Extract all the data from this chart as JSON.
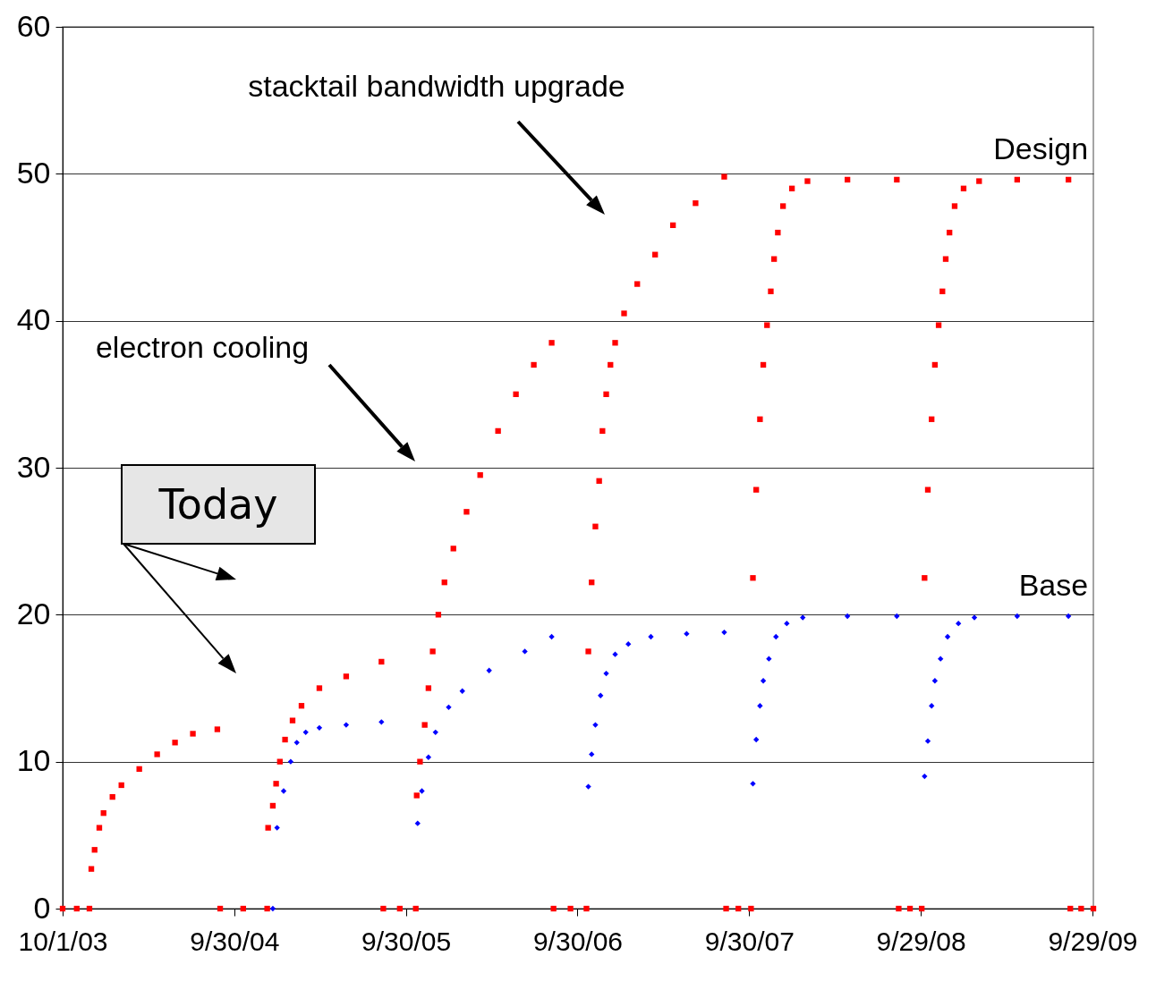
{
  "chart_data": {
    "type": "scatter",
    "xlim": [
      "2003-10-01",
      "2009-10-01"
    ],
    "xticks": [
      {
        "value": "2003-10-01",
        "label": "10/1/03"
      },
      {
        "value": "2004-09-30",
        "label": "9/30/04"
      },
      {
        "value": "2005-09-30",
        "label": "9/30/05"
      },
      {
        "value": "2006-09-30",
        "label": "9/30/06"
      },
      {
        "value": "2007-09-30",
        "label": "9/30/07"
      },
      {
        "value": "2008-09-29",
        "label": "9/29/08"
      },
      {
        "value": "2009-09-29",
        "label": "9/29/09"
      }
    ],
    "ylim": [
      0,
      60
    ],
    "yticks": [
      0,
      10,
      20,
      30,
      40,
      50,
      60
    ],
    "grid": "y",
    "annotations": [
      "stacktail bandwidth upgrade",
      "electron cooling",
      "Today"
    ],
    "series": [
      {
        "name": "Design",
        "color": "#ff0000",
        "marker": "square",
        "x": [
          "2003-10-01",
          "2003-10-31",
          "2003-11-27",
          "2003-12-01",
          "2003-12-08",
          "2003-12-18",
          "2003-12-27",
          "2004-01-15",
          "2004-02-03",
          "2004-03-12",
          "2004-04-19",
          "2004-05-27",
          "2004-07-04",
          "2004-08-25",
          "2004-08-31",
          "2004-10-19",
          "2004-12-09",
          "2004-12-11",
          "2004-12-21",
          "2004-12-28",
          "2005-01-05",
          "2005-01-16",
          "2005-02-01",
          "2005-02-20",
          "2005-03-30",
          "2005-05-26",
          "2005-08-09",
          "2005-08-13",
          "2005-09-17",
          "2005-10-21",
          "2005-10-23",
          "2005-10-30",
          "2005-11-09",
          "2005-11-17",
          "2005-11-26",
          "2005-12-08",
          "2005-12-21",
          "2006-01-09",
          "2006-02-06",
          "2006-03-07",
          "2006-04-14",
          "2006-05-22",
          "2006-06-29",
          "2006-08-06",
          "2006-08-10",
          "2006-09-15",
          "2006-10-19",
          "2006-10-23",
          "2006-10-30",
          "2006-11-07",
          "2006-11-15",
          "2006-11-22",
          "2006-11-30",
          "2006-12-09",
          "2006-12-19",
          "2007-01-07",
          "2007-02-04",
          "2007-03-14",
          "2007-04-21",
          "2007-06-08",
          "2007-08-08",
          "2007-08-12",
          "2007-09-07",
          "2007-10-04",
          "2007-10-08",
          "2007-10-15",
          "2007-10-23",
          "2007-10-30",
          "2007-11-07",
          "2007-11-15",
          "2007-11-22",
          "2007-11-30",
          "2007-12-11",
          "2007-12-30",
          "2008-02-01",
          "2008-04-26",
          "2008-08-09",
          "2008-08-13",
          "2008-09-06",
          "2008-10-01",
          "2008-10-07",
          "2008-10-14",
          "2008-10-22",
          "2008-10-29",
          "2008-11-06",
          "2008-11-14",
          "2008-11-21",
          "2008-11-29",
          "2008-12-10",
          "2008-12-29",
          "2009-01-31",
          "2009-04-22",
          "2009-08-09",
          "2009-08-13",
          "2009-09-05",
          "2009-10-01"
        ],
        "values": [
          0,
          0,
          0,
          2.7,
          4,
          5.5,
          6.5,
          7.6,
          8.4,
          9.5,
          10.5,
          11.3,
          11.9,
          12.2,
          0,
          0,
          0,
          5.5,
          7,
          8.5,
          10,
          11.5,
          12.8,
          13.8,
          15,
          15.8,
          16.8,
          0,
          0,
          0,
          7.7,
          10,
          12.5,
          15,
          17.5,
          20,
          22.2,
          24.5,
          27,
          29.5,
          32.5,
          35,
          37,
          38.5,
          0,
          0,
          0,
          17.5,
          22.2,
          26,
          29.1,
          32.5,
          35,
          37,
          38.5,
          40.5,
          42.5,
          44.5,
          46.5,
          48,
          49.8,
          0,
          0,
          0,
          22.5,
          28.5,
          33.3,
          37,
          39.7,
          42,
          44.2,
          46,
          47.8,
          49,
          49.5,
          49.6,
          49.6,
          0,
          0,
          0,
          22.5,
          28.5,
          33.3,
          37,
          39.7,
          42,
          44.2,
          46,
          47.8,
          49,
          49.5,
          49.6,
          49.6,
          0,
          0,
          0
        ]
      },
      {
        "name": "Base",
        "color": "#0000ff",
        "marker": "diamond",
        "x": [
          "2004-12-21",
          "2004-12-30",
          "2005-01-13",
          "2005-01-28",
          "2005-02-10",
          "2005-03-01",
          "2005-03-30",
          "2005-05-26",
          "2005-08-09",
          "2005-10-25",
          "2005-11-03",
          "2005-11-17",
          "2005-12-02",
          "2005-12-30",
          "2006-01-28",
          "2006-03-26",
          "2006-06-10",
          "2006-08-06",
          "2006-10-23",
          "2006-10-30",
          "2006-11-07",
          "2006-11-18",
          "2006-11-30",
          "2006-12-19",
          "2007-01-16",
          "2007-03-05",
          "2007-05-20",
          "2007-08-08",
          "2007-10-08",
          "2007-10-15",
          "2007-10-23",
          "2007-10-30",
          "2007-11-11",
          "2007-11-26",
          "2007-12-19",
          "2008-01-22",
          "2008-04-26",
          "2008-08-09",
          "2008-10-07",
          "2008-10-14",
          "2008-10-22",
          "2008-10-29",
          "2008-11-10",
          "2008-11-25",
          "2008-12-18",
          "2009-01-21",
          "2009-04-22",
          "2009-08-09"
        ],
        "values": [
          0,
          5.5,
          8,
          10,
          11.3,
          12,
          12.3,
          12.5,
          12.7,
          5.8,
          8,
          10.3,
          12,
          13.7,
          14.8,
          16.2,
          17.5,
          18.5,
          8.3,
          10.5,
          12.5,
          14.5,
          16,
          17.3,
          18,
          18.5,
          18.7,
          18.8,
          8.5,
          11.5,
          13.8,
          15.5,
          17,
          18.5,
          19.4,
          19.8,
          19.9,
          19.9,
          9,
          11.4,
          13.8,
          15.5,
          17,
          18.5,
          19.4,
          19.8,
          19.9,
          19.9
        ]
      }
    ]
  }
}
